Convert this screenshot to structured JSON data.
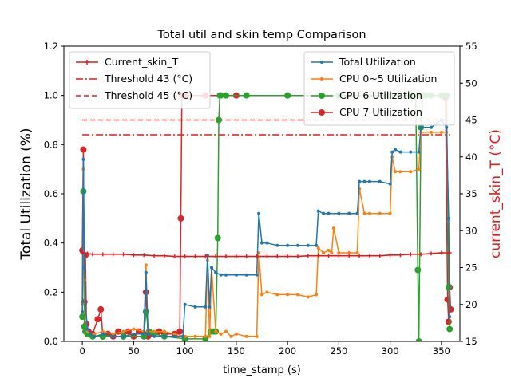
{
  "chart_data": {
    "type": "line",
    "title": "Total util and skin temp Comparison",
    "xlabel": "time_stamp (s)",
    "ylabel_left": "Total Utilization (%)",
    "ylabel_right": "current_skin_T (°C)",
    "xlim": [
      -18,
      368
    ],
    "ylim_left": [
      0,
      1.2
    ],
    "ylim_right": [
      15,
      55
    ],
    "x_ticks": [
      0,
      50,
      100,
      150,
      200,
      250,
      300,
      350
    ],
    "y_left_ticks": [
      "0.0",
      "0.2",
      "0.4",
      "0.6",
      "0.8",
      "1.0",
      "1.2"
    ],
    "y_right_ticks": [
      15,
      20,
      25,
      30,
      35,
      40,
      45,
      50,
      55
    ],
    "grid": false,
    "legend_left_placement": "upper-left",
    "legend_right_placement": "upper-right",
    "legend_left": [
      {
        "label": "Current_skin_T",
        "color": "#e41a1c",
        "style": "solid-star"
      },
      {
        "label": "Threshold 43 (°C)",
        "color": "#e41a1c",
        "style": "dashdot"
      },
      {
        "label": "Threshold 45 (°C)",
        "color": "#e41a1c",
        "style": "dashed"
      }
    ],
    "legend_right": [
      {
        "label": "Total Utilization",
        "color": "#1f77b4",
        "style": "line-dot"
      },
      {
        "label": "CPU 0~5 Utilization",
        "color": "#ff7f0e",
        "style": "line-dot"
      },
      {
        "label": "CPU 6 Utilization",
        "color": "#2ca02c",
        "style": "line-circle"
      },
      {
        "label": "CPU 7 Utilization",
        "color": "#d62728",
        "style": "line-circle"
      }
    ],
    "series": [
      {
        "name": "Total Utilization",
        "axis": "left",
        "color": "#1f77b4",
        "x": [
          0,
          1,
          2,
          3,
          5,
          8,
          12,
          20,
          30,
          40,
          50,
          60,
          62,
          64,
          70,
          80,
          90,
          98,
          100,
          110,
          120,
          122,
          124,
          126,
          130,
          135,
          140,
          150,
          160,
          170,
          172,
          175,
          180,
          190,
          200,
          210,
          220,
          228,
          230,
          235,
          240,
          250,
          260,
          268,
          270,
          275,
          280,
          290,
          300,
          302,
          305,
          310,
          320,
          328,
          330,
          340,
          350,
          355,
          357,
          358
        ],
        "y": [
          0.12,
          0.74,
          0.3,
          0.15,
          0.05,
          0.03,
          0.02,
          0.03,
          0.02,
          0.02,
          0.03,
          0.03,
          0.28,
          0.03,
          0.02,
          0.02,
          0.02,
          0.02,
          0.15,
          0.14,
          0.14,
          0.35,
          0.14,
          0.3,
          0.28,
          0.27,
          0.27,
          0.27,
          0.27,
          0.27,
          0.52,
          0.4,
          0.4,
          0.39,
          0.39,
          0.39,
          0.39,
          0.39,
          0.53,
          0.52,
          0.52,
          0.52,
          0.52,
          0.52,
          0.65,
          0.65,
          0.65,
          0.65,
          0.64,
          0.77,
          0.78,
          0.77,
          0.77,
          0.77,
          0.87,
          0.87,
          0.9,
          0.87,
          0.5,
          0.1
        ]
      },
      {
        "name": "CPU 0~5 Utilization",
        "axis": "left",
        "color": "#ff7f0e",
        "x": [
          0,
          1,
          2,
          3,
          5,
          8,
          12,
          20,
          30,
          40,
          50,
          60,
          62,
          64,
          70,
          80,
          90,
          100,
          110,
          120,
          122,
          124,
          126,
          130,
          135,
          140,
          145,
          150,
          160,
          170,
          172,
          175,
          180,
          190,
          200,
          210,
          220,
          228,
          230,
          235,
          240,
          243,
          245,
          250,
          260,
          268,
          270,
          275,
          280,
          290,
          300,
          302,
          305,
          310,
          320,
          328,
          330,
          340,
          350,
          355,
          357,
          358
        ],
        "y": [
          0.15,
          0.7,
          0.25,
          0.12,
          0.04,
          0.03,
          0.03,
          0.04,
          0.03,
          0.04,
          0.05,
          0.04,
          0.31,
          0.04,
          0.04,
          0.04,
          0.03,
          0.02,
          0.02,
          0.02,
          0.33,
          0.02,
          0.3,
          0.04,
          0.03,
          0.04,
          0.02,
          0.03,
          0.02,
          0.02,
          0.36,
          0.19,
          0.2,
          0.19,
          0.19,
          0.19,
          0.18,
          0.19,
          0.38,
          0.36,
          0.37,
          0.36,
          0.46,
          0.36,
          0.36,
          0.36,
          0.62,
          0.52,
          0.52,
          0.52,
          0.52,
          0.75,
          0.69,
          0.69,
          0.69,
          0.7,
          0.85,
          0.85,
          0.85,
          0.85,
          0.5,
          0.1
        ]
      },
      {
        "name": "CPU 6 Utilization",
        "axis": "left",
        "color": "#2ca02c",
        "x": [
          0,
          1,
          2,
          3,
          5,
          10,
          20,
          40,
          60,
          62,
          65,
          70,
          80,
          100,
          120,
          125,
          128,
          130,
          132,
          133,
          134,
          135,
          140,
          160,
          200,
          250,
          300,
          320,
          325,
          327,
          328,
          330,
          332,
          335,
          340,
          350,
          355,
          357,
          358
        ],
        "y": [
          0.1,
          0.61,
          0.06,
          0.04,
          0.03,
          0.02,
          0.02,
          0.02,
          0.02,
          0.12,
          0.04,
          0.03,
          0.02,
          0.01,
          0.01,
          0.04,
          0.04,
          0.04,
          0.42,
          0.9,
          1.0,
          1.0,
          1.0,
          1.0,
          1.0,
          1.0,
          1.0,
          1.0,
          1.0,
          0.29,
          0.0,
          0.87,
          1.0,
          1.0,
          1.0,
          1.0,
          1.0,
          0.22,
          0.05
        ]
      },
      {
        "name": "CPU 7 Utilization",
        "axis": "left",
        "color": "#d62728",
        "x": [
          0,
          1,
          2,
          3,
          4,
          6,
          10,
          15,
          18,
          20,
          25,
          30,
          35,
          40,
          45,
          50,
          55,
          60,
          62,
          64,
          68,
          75,
          80,
          90,
          95,
          96,
          97,
          98,
          100,
          120,
          150,
          200,
          250,
          300,
          320,
          330,
          340,
          350,
          354,
          356,
          357,
          358,
          359
        ],
        "y": [
          0.37,
          0.78,
          0.16,
          0.35,
          0.07,
          0.04,
          0.03,
          0.09,
          0.13,
          0.02,
          0.03,
          0.02,
          0.04,
          0.02,
          0.04,
          0.02,
          0.04,
          0.03,
          0.2,
          0.02,
          0.03,
          0.04,
          0.03,
          0.03,
          0.04,
          0.5,
          1.0,
          1.0,
          1.0,
          1.0,
          1.0,
          1.0,
          1.0,
          1.0,
          1.0,
          1.0,
          1.0,
          1.0,
          0.99,
          0.17,
          0.08,
          0.22,
          0.13
        ]
      },
      {
        "name": "Current_skin_T",
        "axis": "right",
        "color": "#e41a1c",
        "x": [
          0,
          5,
          10,
          20,
          30,
          40,
          50,
          60,
          70,
          80,
          90,
          100,
          110,
          120,
          130,
          140,
          150,
          160,
          170,
          180,
          190,
          200,
          210,
          220,
          230,
          240,
          250,
          260,
          270,
          280,
          290,
          300,
          310,
          320,
          330,
          340,
          350,
          358
        ],
        "y": [
          27,
          26.9,
          26.8,
          26.8,
          26.8,
          26.8,
          26.7,
          26.7,
          26.6,
          26.6,
          26.5,
          26.5,
          26.5,
          26.5,
          26.5,
          26.5,
          26.5,
          26.5,
          26.5,
          26.5,
          26.5,
          26.5,
          26.5,
          26.6,
          26.6,
          26.6,
          26.6,
          26.6,
          26.6,
          26.6,
          26.6,
          26.7,
          26.7,
          26.8,
          26.8,
          26.9,
          27,
          27
        ]
      },
      {
        "name": "Threshold 43 (°C)",
        "axis": "right",
        "color": "#e41a1c",
        "x": [
          0,
          358
        ],
        "y": [
          43,
          43
        ]
      },
      {
        "name": "Threshold 45 (°C)",
        "axis": "right",
        "color": "#e41a1c",
        "x": [
          0,
          358
        ],
        "y": [
          45,
          45
        ]
      }
    ]
  }
}
